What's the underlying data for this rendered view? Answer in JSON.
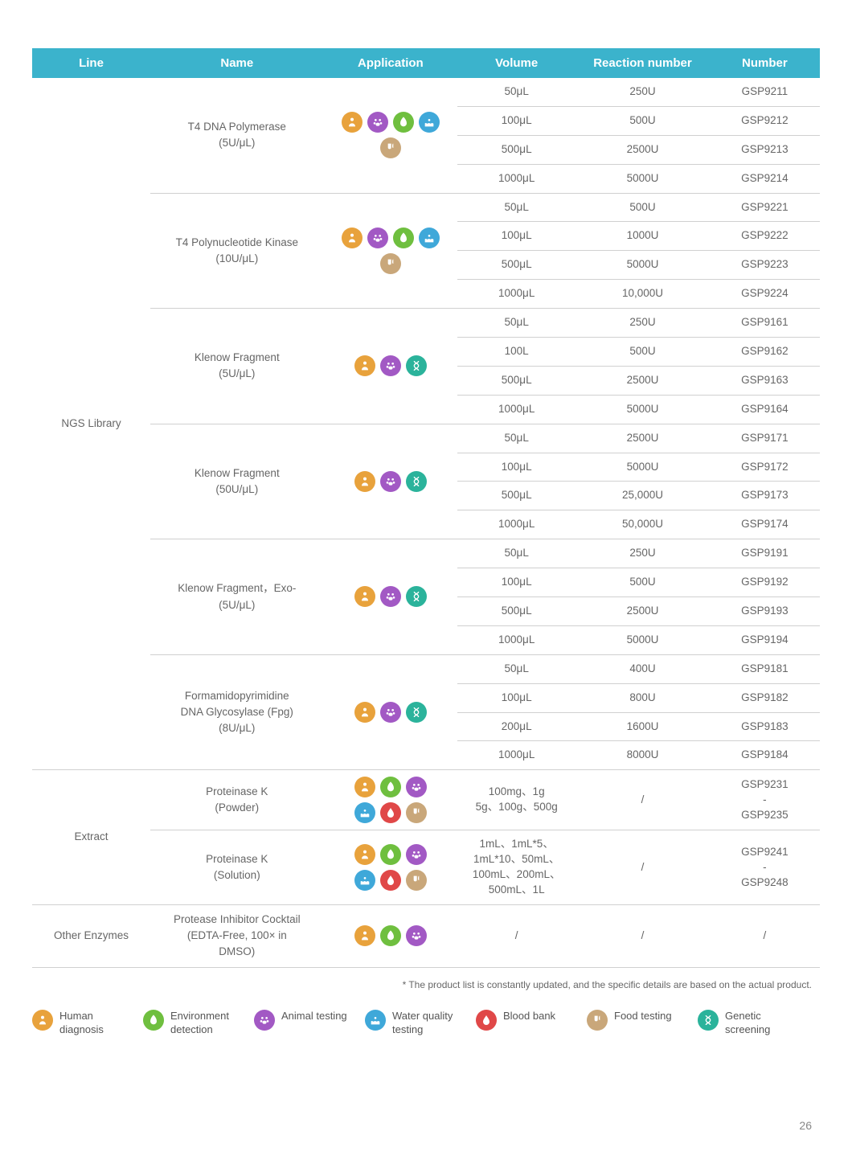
{
  "headers": [
    "Line",
    "Name",
    "Application",
    "Volume",
    "Reaction number",
    "Number"
  ],
  "icons": {
    "human": {
      "label": "Human diagnosis",
      "cls": "c-human"
    },
    "env": {
      "label": "Environment detection",
      "cls": "c-env"
    },
    "animal": {
      "label": "Animal testing",
      "cls": "c-animal"
    },
    "water": {
      "label": "Water quality testing",
      "cls": "c-water"
    },
    "blood": {
      "label": "Blood bank",
      "cls": "c-blood"
    },
    "food": {
      "label": "Food testing",
      "cls": "c-food"
    },
    "genetic": {
      "label": "Genetic screening",
      "cls": "c-genetic"
    }
  },
  "legend_order": [
    "human",
    "env",
    "animal",
    "water",
    "blood",
    "food",
    "genetic"
  ],
  "lines": [
    {
      "line": "NGS Library",
      "groups": [
        {
          "name": "T4 DNA Polymerase\n(5U/μL)",
          "apps": [
            "human",
            "animal",
            "env",
            "water",
            "food"
          ],
          "rows": [
            [
              "50μL",
              "250U",
              "GSP9211"
            ],
            [
              "100μL",
              "500U",
              "GSP9212"
            ],
            [
              "500μL",
              "2500U",
              "GSP9213"
            ],
            [
              "1000μL",
              "5000U",
              "GSP9214"
            ]
          ]
        },
        {
          "name": "T4 Polynucleotide Kinase\n(10U/μL)",
          "apps": [
            "human",
            "animal",
            "env",
            "water",
            "food"
          ],
          "rows": [
            [
              "50μL",
              "500U",
              "GSP9221"
            ],
            [
              "100μL",
              "1000U",
              "GSP9222"
            ],
            [
              "500μL",
              "5000U",
              "GSP9223"
            ],
            [
              "1000μL",
              "10,000U",
              "GSP9224"
            ]
          ]
        },
        {
          "name": "Klenow Fragment\n(5U/μL)",
          "apps": [
            "human",
            "animal",
            "genetic"
          ],
          "rows": [
            [
              "50μL",
              "250U",
              "GSP9161"
            ],
            [
              "100L",
              "500U",
              "GSP9162"
            ],
            [
              "500μL",
              "2500U",
              "GSP9163"
            ],
            [
              "1000μL",
              "5000U",
              "GSP9164"
            ]
          ]
        },
        {
          "name": "Klenow Fragment\n(50U/μL)",
          "apps": [
            "human",
            "animal",
            "genetic"
          ],
          "rows": [
            [
              "50μL",
              "2500U",
              "GSP9171"
            ],
            [
              "100μL",
              "5000U",
              "GSP9172"
            ],
            [
              "500μL",
              "25,000U",
              "GSP9173"
            ],
            [
              "1000μL",
              "50,000U",
              "GSP9174"
            ]
          ]
        },
        {
          "name": "Klenow Fragment，Exo-\n(5U/μL)",
          "apps": [
            "human",
            "animal",
            "genetic"
          ],
          "rows": [
            [
              "50μL",
              "250U",
              "GSP9191"
            ],
            [
              "100μL",
              "500U",
              "GSP9192"
            ],
            [
              "500μL",
              "2500U",
              "GSP9193"
            ],
            [
              "1000μL",
              "5000U",
              "GSP9194"
            ]
          ]
        },
        {
          "name": "Formamidopyrimidine\nDNA Glycosylase (Fpg)\n(8U/μL)",
          "apps": [
            "human",
            "animal",
            "genetic"
          ],
          "rows": [
            [
              "50μL",
              "400U",
              "GSP9181"
            ],
            [
              "100μL",
              "800U",
              "GSP9182"
            ],
            [
              "200μL",
              "1600U",
              "GSP9183"
            ],
            [
              "1000μL",
              "8000U",
              "GSP9184"
            ]
          ]
        }
      ]
    },
    {
      "line": "Extract",
      "groups": [
        {
          "name": "Proteinase K\n(Powder)",
          "apps": [
            "human",
            "env",
            "animal",
            "water",
            "blood",
            "food"
          ],
          "apps_narrow": true,
          "rows": [
            [
              "100mg、1g\n5g、100g、500g",
              "/",
              "GSP9231\n-\nGSP9235"
            ]
          ]
        },
        {
          "name": "Proteinase K\n(Solution)",
          "apps": [
            "human",
            "env",
            "animal",
            "water",
            "blood",
            "food"
          ],
          "apps_narrow": true,
          "rows": [
            [
              "1mL、1mL*5、\n1mL*10、50mL、\n100mL、200mL、\n500mL、1L",
              "/",
              "GSP9241\n-\nGSP9248"
            ]
          ]
        }
      ]
    },
    {
      "line": "Other Enzymes",
      "groups": [
        {
          "name": "Protease Inhibitor Cocktail\n(EDTA-Free, 100× in\nDMSO)",
          "apps": [
            "human",
            "env",
            "animal"
          ],
          "rows": [
            [
              "/",
              "/",
              "/"
            ]
          ]
        }
      ]
    }
  ],
  "footnote": "* The product list is constantly updated, and the specific details are based on the actual product.",
  "page_number": "26"
}
